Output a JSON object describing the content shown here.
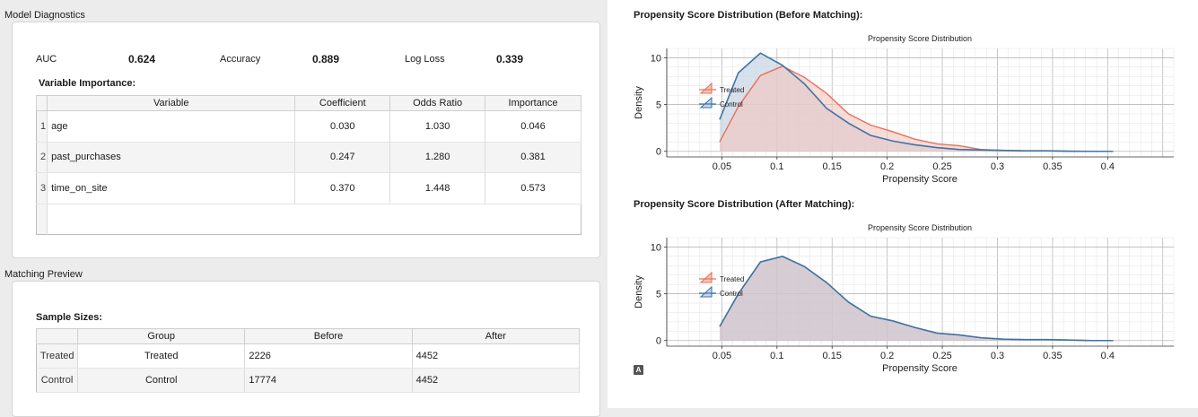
{
  "diagnostics": {
    "title": "Model Diagnostics",
    "metrics": [
      {
        "label": "AUC",
        "value": "0.624"
      },
      {
        "label": "Accuracy",
        "value": "0.889"
      },
      {
        "label": "Log Loss",
        "value": "0.339"
      }
    ],
    "importance_title": "Variable Importance:",
    "columns": [
      "Variable",
      "Coefficient",
      "Odds Ratio",
      "Importance"
    ],
    "rows": [
      {
        "n": "1",
        "variable": "age",
        "coefficient": "0.030",
        "odds": "1.030",
        "importance": "0.046"
      },
      {
        "n": "2",
        "variable": "past_purchases",
        "coefficient": "0.247",
        "odds": "1.280",
        "importance": "0.381"
      },
      {
        "n": "3",
        "variable": "time_on_site",
        "coefficient": "0.370",
        "odds": "1.448",
        "importance": "0.573"
      }
    ]
  },
  "matching": {
    "title": "Matching Preview",
    "sample_title": "Sample Sizes:",
    "columns": [
      "Group",
      "Before",
      "After"
    ],
    "rows": [
      {
        "rowhead": "Treated",
        "group": "Treated",
        "before": "2226",
        "after": "4452"
      },
      {
        "rowhead": "Control",
        "group": "Control",
        "before": "17774",
        "after": "4452"
      }
    ]
  },
  "charts": {
    "before_heading": "Propensity Score Distribution (Before Matching):",
    "after_heading": "Propensity Score Distribution (After Matching):",
    "badge": "A"
  },
  "colors": {
    "treated": "#e8705a",
    "control": "#3d74a8",
    "treated_fill": "#f2c4bc",
    "control_fill": "#c9d7e6",
    "overlap_fill": "#cfc4cc"
  },
  "chart_data": [
    {
      "type": "area",
      "title": "Propensity Score Distribution",
      "xlabel": "Propensity Score",
      "ylabel": "Density",
      "xlim": [
        0,
        0.46
      ],
      "ylim": [
        -0.6,
        11
      ],
      "xticks": [
        0.05,
        0.1,
        0.15,
        0.2,
        0.25,
        0.3,
        0.35,
        0.4
      ],
      "xtick_labels": [
        "0.05",
        "0.1",
        "0.15",
        "0.2",
        "0.25",
        "0.3",
        "0.35",
        "0.4"
      ],
      "yticks": [
        0,
        5,
        10
      ],
      "ytick_labels": [
        "0",
        "5",
        "10"
      ],
      "legend": "upper-left",
      "grid": true,
      "series": [
        {
          "name": "Treated",
          "x": [
            0.048,
            0.065,
            0.085,
            0.105,
            0.125,
            0.145,
            0.165,
            0.185,
            0.205,
            0.225,
            0.245,
            0.265,
            0.285,
            0.305,
            0.325,
            0.345,
            0.365,
            0.385,
            0.405
          ],
          "values": [
            1.0,
            4.8,
            8.1,
            9.1,
            7.9,
            6.2,
            4.0,
            2.8,
            2.1,
            1.3,
            0.8,
            0.6,
            0.2,
            0.1,
            0.05,
            0.05,
            0.0,
            0.0,
            0.0
          ]
        },
        {
          "name": "Control",
          "x": [
            0.048,
            0.065,
            0.085,
            0.105,
            0.125,
            0.145,
            0.165,
            0.185,
            0.205,
            0.225,
            0.245,
            0.265,
            0.285,
            0.305,
            0.325,
            0.345,
            0.365,
            0.385,
            0.405
          ],
          "values": [
            3.4,
            8.4,
            10.5,
            9.2,
            7.2,
            4.6,
            3.0,
            1.7,
            1.1,
            0.7,
            0.4,
            0.2,
            0.15,
            0.1,
            0.05,
            0.05,
            0.02,
            0.0,
            0.0
          ]
        }
      ]
    },
    {
      "type": "area",
      "title": "Propensity Score Distribution",
      "xlabel": "Propensity Score",
      "ylabel": "Density",
      "xlim": [
        0,
        0.46
      ],
      "ylim": [
        -0.6,
        11
      ],
      "xticks": [
        0.05,
        0.1,
        0.15,
        0.2,
        0.25,
        0.3,
        0.35,
        0.4
      ],
      "xtick_labels": [
        "0.05",
        "0.1",
        "0.15",
        "0.2",
        "0.25",
        "0.3",
        "0.35",
        "0.4"
      ],
      "yticks": [
        0,
        5,
        10
      ],
      "ytick_labels": [
        "0",
        "5",
        "10"
      ],
      "legend": "upper-left",
      "grid": true,
      "series": [
        {
          "name": "Treated",
          "x": [
            0.048,
            0.065,
            0.085,
            0.105,
            0.125,
            0.145,
            0.165,
            0.185,
            0.205,
            0.225,
            0.245,
            0.265,
            0.285,
            0.305,
            0.325,
            0.345,
            0.365,
            0.385,
            0.405
          ],
          "values": [
            1.5,
            5.0,
            8.4,
            9.0,
            7.9,
            6.2,
            4.1,
            2.6,
            2.1,
            1.4,
            0.8,
            0.6,
            0.3,
            0.15,
            0.1,
            0.1,
            0.05,
            0.0,
            0.0
          ]
        },
        {
          "name": "Control",
          "x": [
            0.048,
            0.065,
            0.085,
            0.105,
            0.125,
            0.145,
            0.165,
            0.185,
            0.205,
            0.225,
            0.245,
            0.265,
            0.285,
            0.305,
            0.325,
            0.345,
            0.365,
            0.385,
            0.405
          ],
          "values": [
            1.5,
            5.0,
            8.4,
            9.0,
            7.9,
            6.2,
            4.1,
            2.6,
            2.1,
            1.4,
            0.8,
            0.6,
            0.3,
            0.15,
            0.1,
            0.1,
            0.05,
            0.0,
            0.0
          ]
        }
      ]
    }
  ]
}
